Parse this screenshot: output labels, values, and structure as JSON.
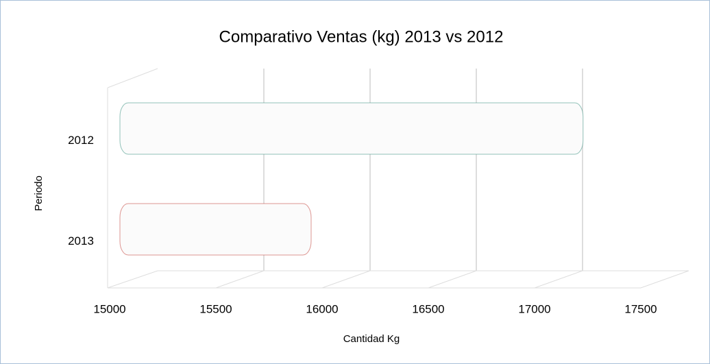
{
  "chart_data": {
    "type": "bar",
    "orientation": "horizontal",
    "title": "Comparativo Ventas (kg)  2013  vs  2012",
    "x_label": "Cantidad Kg",
    "y_label": "Periodo",
    "categories": [
      "2012",
      "2013"
    ],
    "values": [
      17180,
      15900
    ],
    "colors": [
      "#4a9a8a",
      "#c8504a"
    ],
    "xlim": [
      15000,
      17500
    ],
    "xticks": [
      15000,
      15500,
      16000,
      16500,
      17000,
      17500
    ],
    "grid": true
  }
}
